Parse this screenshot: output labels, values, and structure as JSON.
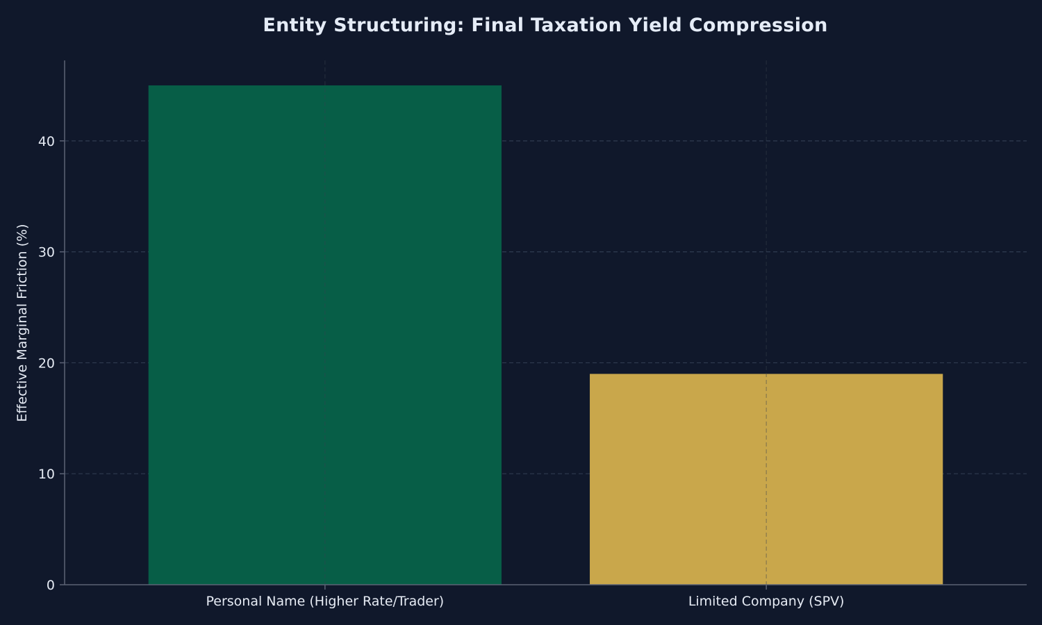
{
  "chart_data": {
    "type": "bar",
    "title": "Entity Structuring: Final Taxation Yield Compression",
    "xlabel": "",
    "ylabel": "Effective Marginal Friction (%)",
    "categories": [
      "Personal Name (Higher Rate/Trader)",
      "Limited Company (SPV)"
    ],
    "values": [
      45,
      19
    ],
    "ylim": [
      0,
      47.25
    ],
    "yticks": [
      0,
      10,
      20,
      30,
      40
    ],
    "grid": true,
    "bar_colors": [
      "#075e47",
      "#c9a74b"
    ]
  },
  "colors": {
    "background": "#10182b",
    "text": "#e6ebf4",
    "title": "#e5ecf7",
    "axis": "#5c6375",
    "grid": "#2f3b50",
    "vgrid": "#38404f"
  }
}
